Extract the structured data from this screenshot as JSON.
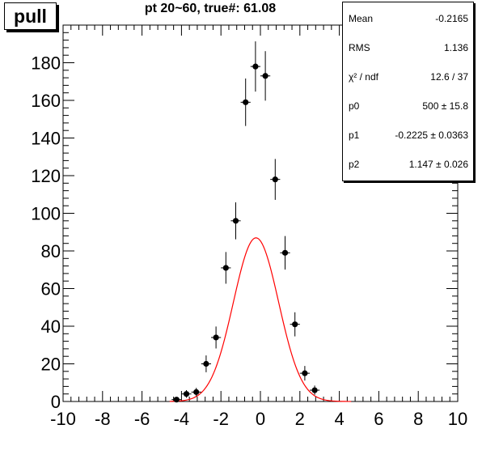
{
  "badge": "pull",
  "title": "pt 20~60, true#: 61.08",
  "stats": [
    {
      "key": "Mean",
      "value": "-0.2165"
    },
    {
      "key": "RMS",
      "value": "1.136"
    },
    {
      "key": "χ² / ndf",
      "value": "12.6 / 37"
    },
    {
      "key": "p0",
      "value": "500 ± 15.8"
    },
    {
      "key": "p1",
      "value": "-0.2225 ± 0.0363"
    },
    {
      "key": "p2",
      "value": "1.147 ± 0.026"
    }
  ],
  "chart_data": {
    "type": "scatter",
    "title": "pt 20~60, true#: 61.08",
    "xlim": [
      -10,
      10
    ],
    "ylim": [
      0,
      200
    ],
    "x_ticks": [
      -10,
      -8,
      -6,
      -4,
      -2,
      0,
      2,
      4,
      6,
      8,
      10
    ],
    "y_ticks": [
      0,
      20,
      40,
      60,
      80,
      100,
      120,
      140,
      160,
      180
    ],
    "bin_width": 0.5,
    "series": [
      {
        "style": "points-with-errors",
        "color": "#000000",
        "points": [
          {
            "x": -4.25,
            "y": 1
          },
          {
            "x": -3.75,
            "y": 4
          },
          {
            "x": -3.25,
            "y": 5
          },
          {
            "x": -2.75,
            "y": 20
          },
          {
            "x": -2.25,
            "y": 34
          },
          {
            "x": -1.75,
            "y": 71
          },
          {
            "x": -1.25,
            "y": 96
          },
          {
            "x": -0.75,
            "y": 159
          },
          {
            "x": -0.25,
            "y": 178
          },
          {
            "x": 0.25,
            "y": 173
          },
          {
            "x": 0.75,
            "y": 118
          },
          {
            "x": 1.25,
            "y": 79
          },
          {
            "x": 1.75,
            "y": 41
          },
          {
            "x": 2.25,
            "y": 15
          },
          {
            "x": 2.75,
            "y": 6
          }
        ]
      },
      {
        "style": "gaussian-fit",
        "color": "#ff0000",
        "p0": 500,
        "p1": -0.2225,
        "p2": 1.147
      }
    ]
  }
}
